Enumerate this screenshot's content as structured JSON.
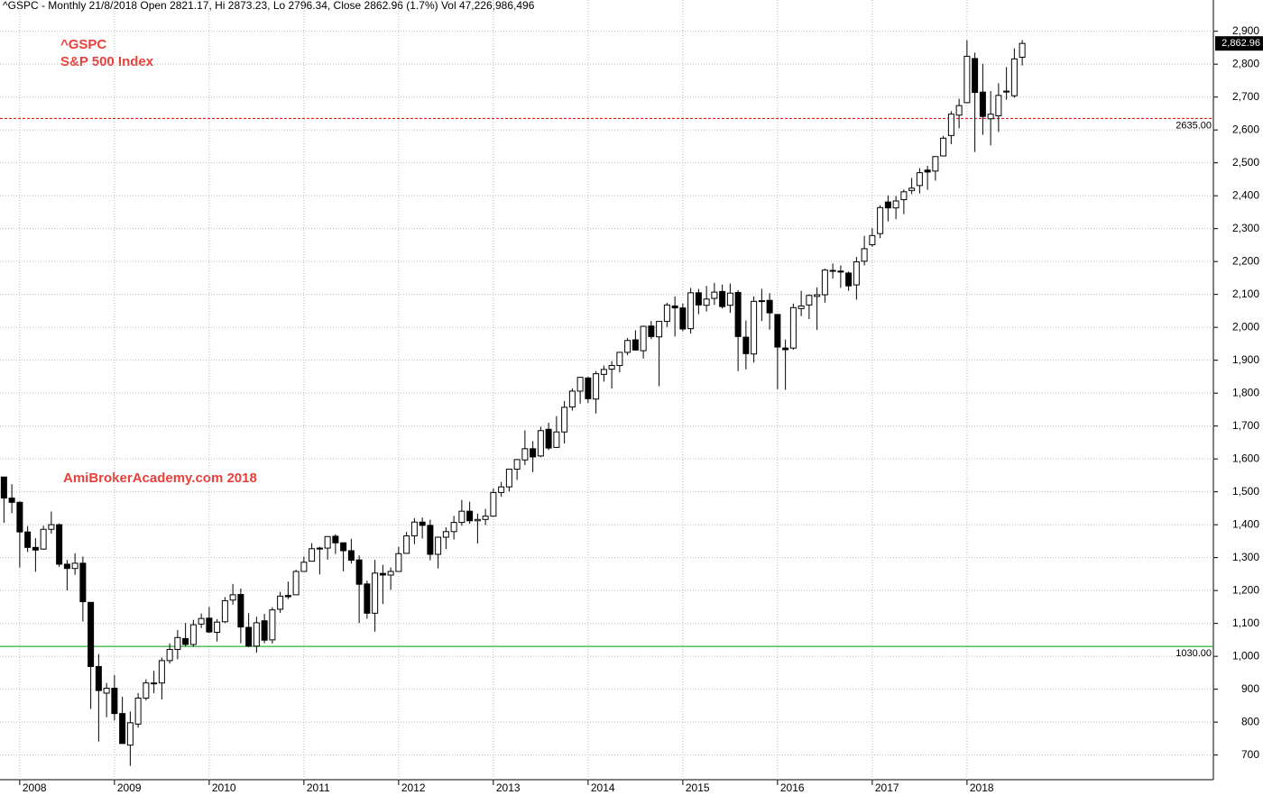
{
  "chart_data": {
    "type": "candlestick",
    "header": "^GSPC - Monthly 21/8/2018 Open 2821.17, Hi 2873.23, Lo 2796.34, Close 2862.96 (1.7%) Vol 47,226,986,496",
    "title": "^GSPC",
    "subtitle": "S&P 500 Index",
    "annotation": "AmiBrokerAcademy.com  2018",
    "categories": [
      null,
      null,
      "2008",
      null,
      null,
      null,
      null,
      null,
      null,
      null,
      null,
      null,
      null,
      null,
      "2009",
      null,
      null,
      null,
      null,
      null,
      null,
      null,
      null,
      null,
      null,
      null,
      "2010",
      null,
      null,
      null,
      null,
      null,
      null,
      null,
      null,
      null,
      null,
      null,
      "2011",
      null,
      null,
      null,
      null,
      null,
      null,
      null,
      null,
      null,
      null,
      null,
      "2012",
      null,
      null,
      null,
      null,
      null,
      null,
      null,
      null,
      null,
      null,
      null,
      "2013",
      null,
      null,
      null,
      null,
      null,
      null,
      null,
      null,
      null,
      null,
      null,
      "2014",
      null,
      null,
      null,
      null,
      null,
      null,
      null,
      null,
      null,
      null,
      null,
      "2015",
      null,
      null,
      null,
      null,
      null,
      null,
      null,
      null,
      null,
      null,
      null,
      "2016",
      null,
      null,
      null,
      null,
      null,
      null,
      null,
      null,
      null,
      null,
      null,
      "2017",
      null,
      null,
      null,
      null,
      null,
      null,
      null,
      null,
      null,
      null,
      null,
      "2018",
      null,
      null,
      null,
      null,
      null,
      null,
      null
    ],
    "open": [
      1545,
      1481,
      1468,
      1378,
      1331,
      1326,
      1386,
      1400,
      1280,
      1267,
      1283,
      1164,
      969,
      888,
      903,
      826,
      730,
      794,
      873,
      919,
      919,
      987,
      1021,
      1054,
      1036,
      1098,
      1116,
      1073,
      1105,
      1171,
      1188,
      1088,
      1031,
      1108,
      1050,
      1143,
      1185,
      1187,
      1258,
      1289,
      1329,
      1329,
      1365,
      1345,
      1321,
      1293,
      1220,
      1131,
      1252,
      1247,
      1258,
      1313,
      1366,
      1408,
      1398,
      1310,
      1362,
      1379,
      1407,
      1441,
      1412,
      1416,
      1426,
      1498,
      1515,
      1569,
      1597,
      1631,
      1609,
      1690,
      1635,
      1682,
      1758,
      1806,
      1846,
      1782,
      1857,
      1873,
      1884,
      1924,
      1962,
      1929,
      2004,
      1971,
      2018,
      2065,
      2059,
      1996,
      2105,
      2067,
      2088,
      2109,
      2067,
      2106,
      1970,
      1919,
      2081,
      2082,
      2039,
      1937,
      1937,
      2057,
      2068,
      2094,
      2099,
      2173,
      2171,
      2165,
      2129,
      2201,
      2251,
      2285,
      2381,
      2363,
      2388,
      2416,
      2431,
      2478,
      2475,
      2521,
      2583,
      2645,
      2683,
      2817,
      2715,
      2634,
      2643,
      2718,
      2704,
      2821
    ],
    "high": [
      1545,
      1523,
      1471,
      1396,
      1359,
      1397,
      1440,
      1404,
      1293,
      1313,
      1303,
      1164,
      1007,
      919,
      943,
      877,
      832,
      888,
      930,
      956,
      996,
      1039,
      1080,
      1101,
      1111,
      1130,
      1150,
      1113,
      1180,
      1220,
      1206,
      1131,
      1120,
      1129,
      1149,
      1196,
      1227,
      1263,
      1303,
      1344,
      1333,
      1364,
      1371,
      1346,
      1357,
      1307,
      1230,
      1293,
      1278,
      1270,
      1333,
      1378,
      1420,
      1422,
      1415,
      1364,
      1392,
      1427,
      1475,
      1470,
      1434,
      1448,
      1510,
      1530,
      1570,
      1598,
      1687,
      1654,
      1698,
      1710,
      1730,
      1776,
      1814,
      1849,
      1850,
      1867,
      1884,
      1897,
      1924,
      1968,
      1991,
      2005,
      2019,
      2018,
      2075,
      2094,
      2072,
      2120,
      2117,
      2126,
      2135,
      2130,
      2133,
      2113,
      2021,
      2094,
      2117,
      2104,
      2039,
      1963,
      2072,
      2111,
      2100,
      2121,
      2178,
      2194,
      2188,
      2170,
      2214,
      2278,
      2301,
      2371,
      2401,
      2399,
      2419,
      2454,
      2484,
      2491,
      2519,
      2582,
      2657,
      2695,
      2873,
      2835,
      2801,
      2718,
      2742,
      2791,
      2848,
      2873
    ],
    "low": [
      1406,
      1435,
      1270,
      1317,
      1257,
      1324,
      1373,
      1272,
      1200,
      1248,
      1106,
      840,
      741,
      815,
      805,
      735,
      667,
      783,
      866,
      888,
      869,
      978,
      991,
      1030,
      1029,
      1086,
      1071,
      1045,
      1101,
      1157,
      1040,
      1028,
      1011,
      1040,
      1039,
      1132,
      1174,
      1187,
      1257,
      1289,
      1249,
      1294,
      1311,
      1258,
      1282,
      1101,
      1114,
      1075,
      1159,
      1202,
      1259,
      1312,
      1341,
      1358,
      1292,
      1267,
      1326,
      1355,
      1397,
      1403,
      1343,
      1399,
      1426,
      1485,
      1501,
      1536,
      1581,
      1560,
      1605,
      1627,
      1633,
      1647,
      1747,
      1768,
      1770,
      1738,
      1835,
      1814,
      1863,
      1915,
      1930,
      1905,
      1964,
      1821,
      2001,
      1972,
      1988,
      1981,
      2040,
      2048,
      2068,
      2057,
      2044,
      1867,
      1872,
      1893,
      2019,
      1993,
      1812,
      1810,
      1932,
      2034,
      2025,
      1992,
      2075,
      2148,
      2120,
      2111,
      2084,
      2188,
      2245,
      2271,
      2322,
      2329,
      2344,
      2405,
      2407,
      2418,
      2446,
      2520,
      2557,
      2605,
      2683,
      2533,
      2585,
      2553,
      2594,
      2692,
      2698,
      2796
    ],
    "close": [
      1481,
      1468,
      1378,
      1331,
      1323,
      1386,
      1400,
      1280,
      1267,
      1283,
      1166,
      969,
      896,
      903,
      826,
      735,
      798,
      873,
      919,
      919,
      987,
      1021,
      1057,
      1036,
      1096,
      1115,
      1074,
      1104,
      1169,
      1187,
      1089,
      1031,
      1102,
      1049,
      1141,
      1183,
      1181,
      1258,
      1286,
      1327,
      1326,
      1364,
      1345,
      1321,
      1292,
      1219,
      1131,
      1253,
      1247,
      1258,
      1312,
      1366,
      1408,
      1398,
      1310,
      1362,
      1379,
      1407,
      1441,
      1412,
      1416,
      1426,
      1498,
      1515,
      1569,
      1598,
      1631,
      1606,
      1686,
      1633,
      1682,
      1757,
      1806,
      1848,
      1783,
      1859,
      1872,
      1884,
      1924,
      1960,
      1931,
      2003,
      1972,
      2018,
      2068,
      2059,
      1995,
      2105,
      2068,
      2086,
      2107,
      2063,
      2104,
      1972,
      1920,
      2079,
      2080,
      2044,
      1940,
      1932,
      2060,
      2065,
      2097,
      2099,
      2174,
      2171,
      2168,
      2126,
      2199,
      2239,
      2279,
      2364,
      2363,
      2384,
      2412,
      2423,
      2470,
      2472,
      2519,
      2575,
      2648,
      2674,
      2824,
      2714,
      2641,
      2648,
      2705,
      2718,
      2816,
      2863
    ],
    "up_color": "#ffffff",
    "down_color": "#000000",
    "ylim": [
      625,
      2995
    ],
    "yticks": [
      700,
      800,
      900,
      {
        "value": 1000,
        "label": "1,000"
      },
      {
        "value": 1100,
        "label": "1,100"
      },
      {
        "value": 1200,
        "label": "1,200"
      },
      {
        "value": 1300,
        "label": "1,300"
      },
      {
        "value": 1400,
        "label": "1,400"
      },
      {
        "value": 1500,
        "label": "1,500"
      },
      {
        "value": 1600,
        "label": "1,600"
      },
      {
        "value": 1700,
        "label": "1,700"
      },
      {
        "value": 1800,
        "label": "1,800"
      },
      {
        "value": 1900,
        "label": "1,900"
      },
      {
        "value": 2000,
        "label": "2,000"
      },
      {
        "value": 2100,
        "label": "2,100"
      },
      {
        "value": 2200,
        "label": "2,200"
      },
      {
        "value": 2300,
        "label": "2,300"
      },
      {
        "value": 2400,
        "label": "2,400"
      },
      {
        "value": 2500,
        "label": "2,500"
      },
      {
        "value": 2600,
        "label": "2,600"
      },
      {
        "value": 2700,
        "label": "2,700"
      },
      {
        "value": 2800,
        "label": "2,800"
      },
      {
        "value": 2900,
        "label": "2,900"
      }
    ],
    "grid": true,
    "hlines": [
      {
        "value": 2635,
        "label": "2635.00",
        "color": "#e00000",
        "style": "dashed"
      },
      {
        "value": 1030,
        "label": "1030.00",
        "color": "#00a000",
        "style": "solid"
      }
    ],
    "last_price": {
      "value": 2862.96,
      "label": "2,862.96"
    }
  }
}
